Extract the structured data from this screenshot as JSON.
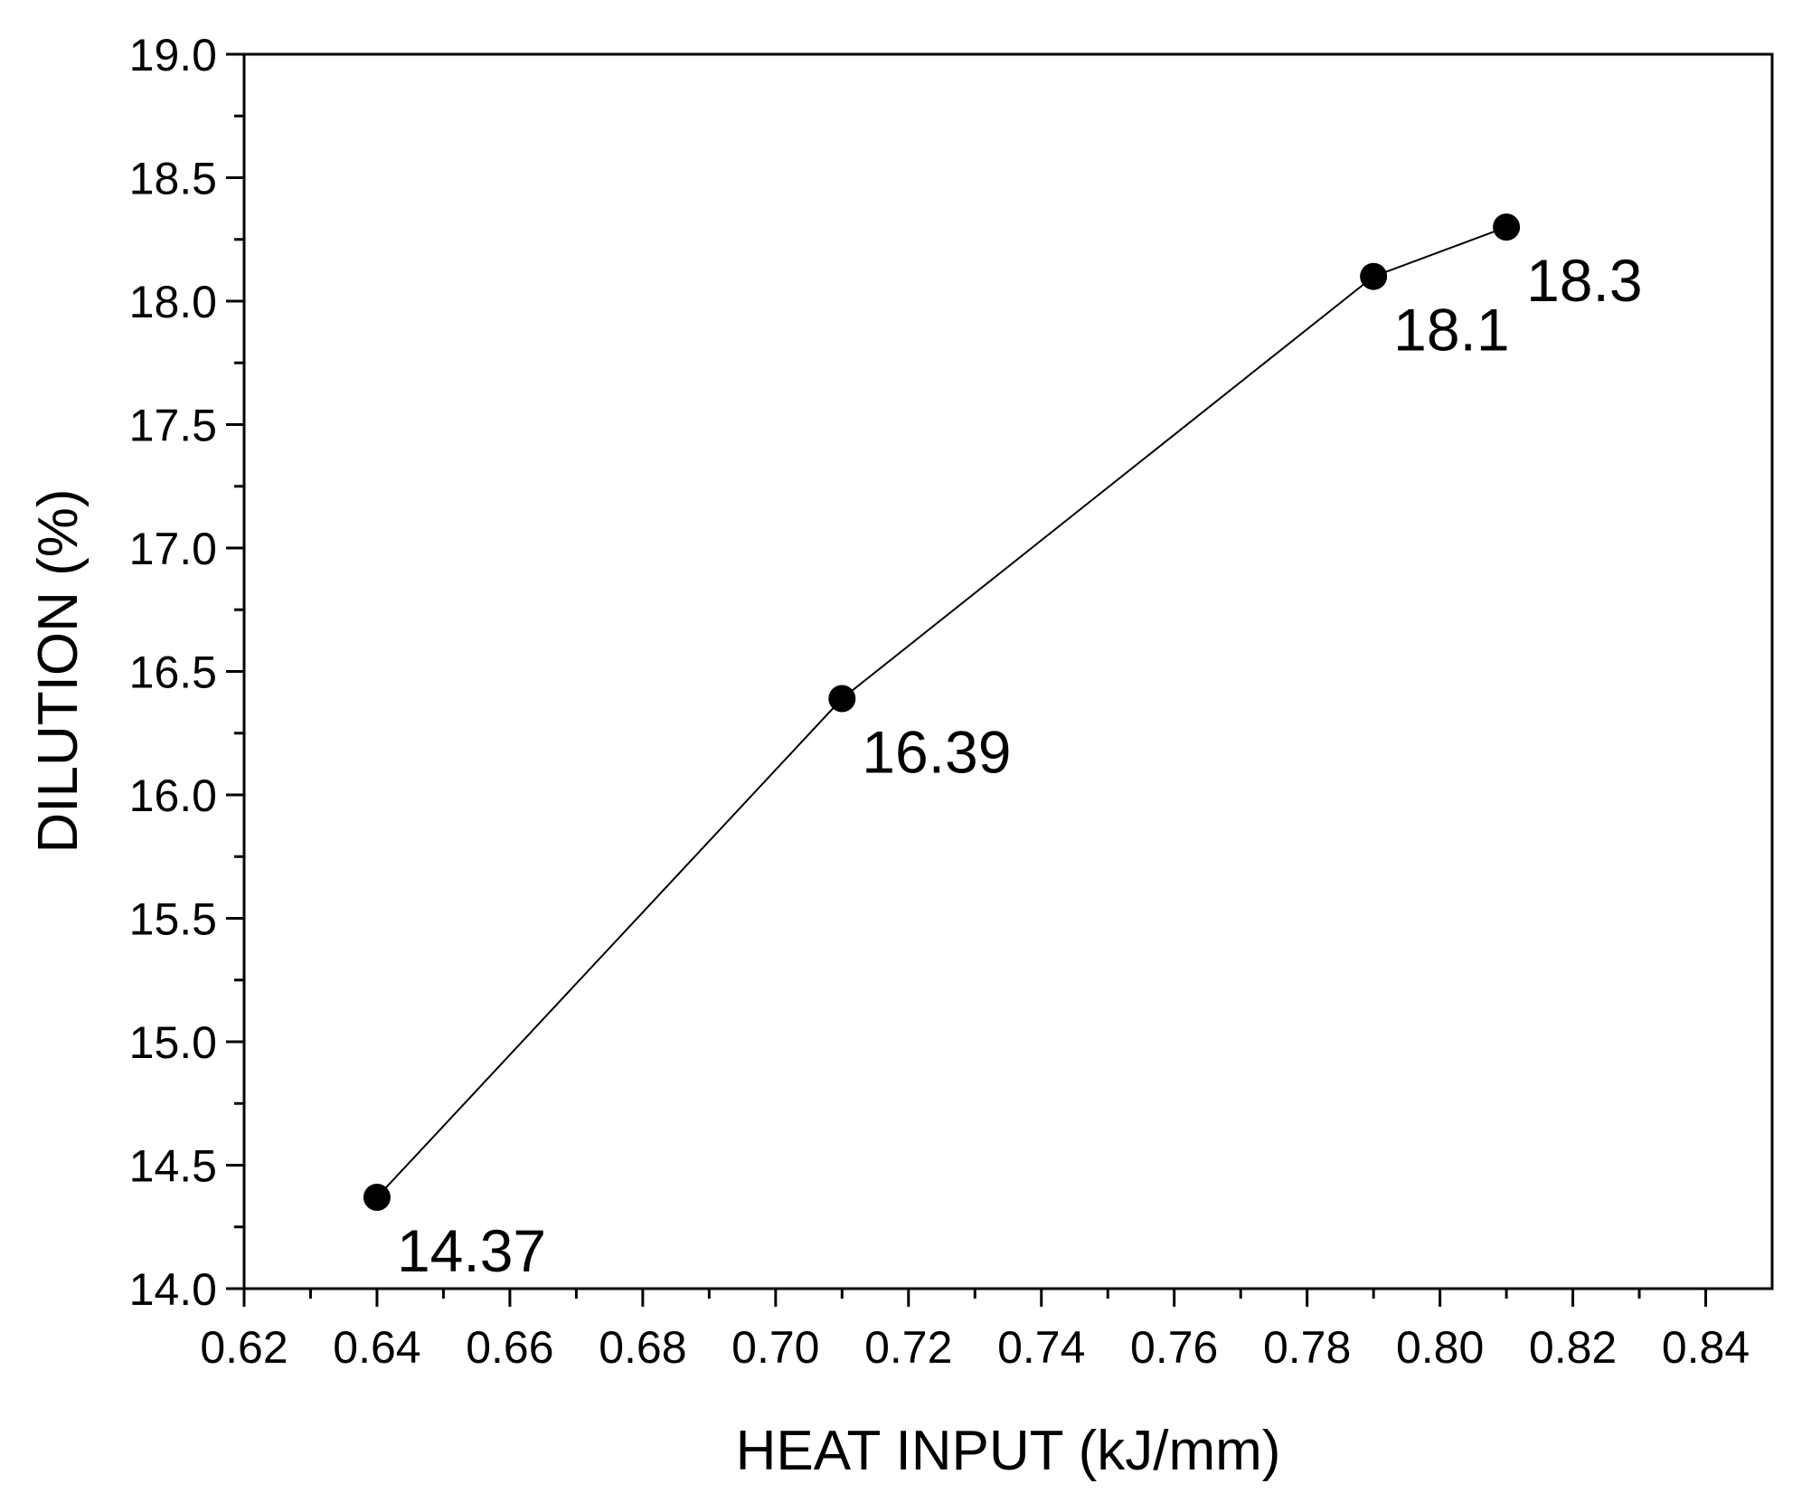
{
  "chart_data": {
    "type": "line",
    "xlabel": "HEAT INPUT (kJ/mm)",
    "ylabel": "DILUTION (%)",
    "xlim": [
      0.62,
      0.85
    ],
    "ylim": [
      14.0,
      19.0
    ],
    "x_ticks": [
      "0.62",
      "0.64",
      "0.66",
      "0.68",
      "0.70",
      "0.72",
      "0.74",
      "0.76",
      "0.78",
      "0.80",
      "0.82",
      "0.84"
    ],
    "y_ticks": [
      "14.0",
      "14.5",
      "15.0",
      "15.5",
      "16.0",
      "16.5",
      "17.0",
      "17.5",
      "18.0",
      "18.5",
      "19.0"
    ],
    "grid": false,
    "legend": "none",
    "series": [
      {
        "x": [
          0.64,
          0.71,
          0.79,
          0.81
        ],
        "y": [
          14.37,
          16.39,
          18.1,
          18.3
        ],
        "labels": [
          "14.37",
          "16.39",
          "18.1",
          "18.3"
        ],
        "color": "#000000",
        "marker": "circle"
      }
    ]
  }
}
